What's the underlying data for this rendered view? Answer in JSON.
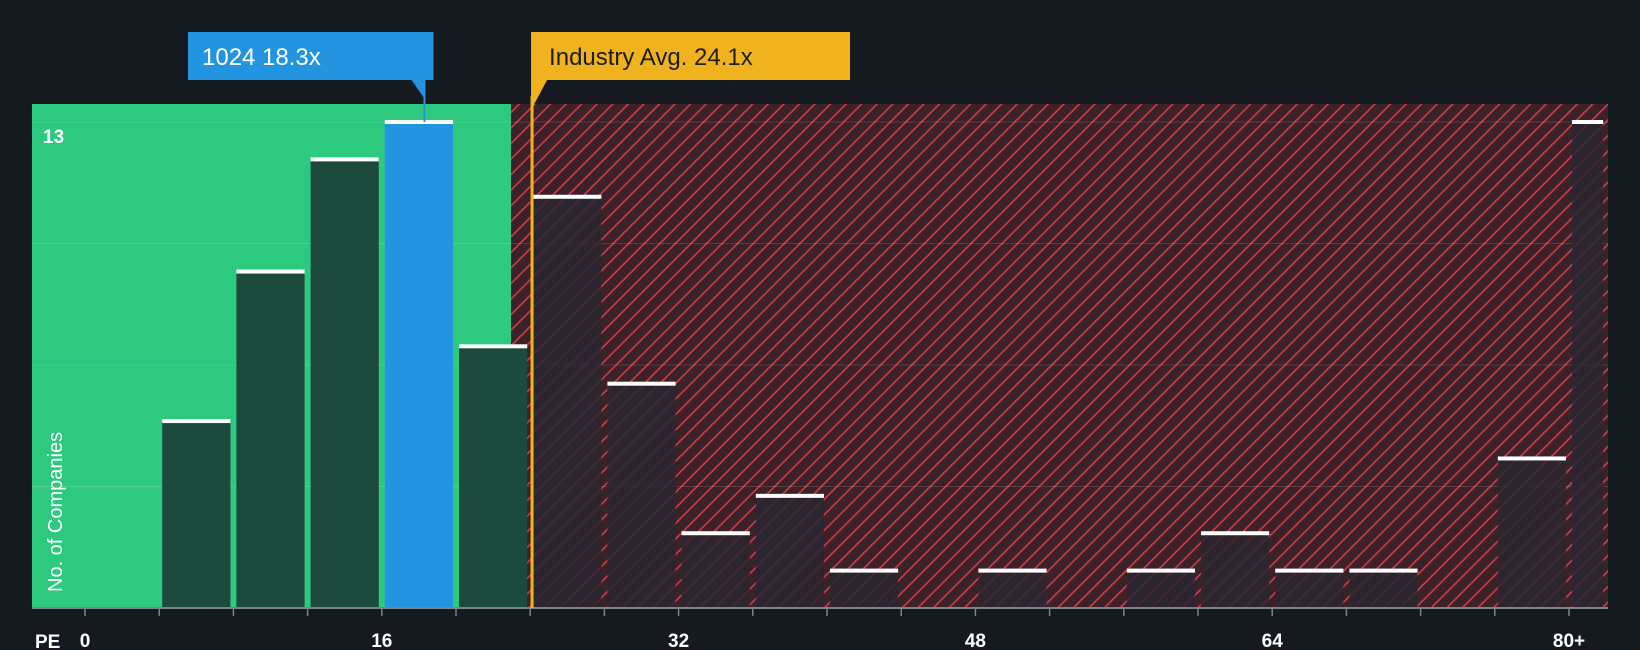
{
  "chart_data": {
    "type": "bar",
    "title": "",
    "xlabel": "PE",
    "ylabel": "No. of Companies",
    "x_tick_labels": [
      "0",
      "16",
      "32",
      "48",
      "64",
      "80+"
    ],
    "x_tick_values": [
      0,
      16,
      32,
      48,
      64,
      80
    ],
    "xlim": [
      -2.8,
      82
    ],
    "ylim": [
      0,
      13.5
    ],
    "y_max_label": "13",
    "bin_width": 4,
    "bins": [
      {
        "start": 0,
        "end": 4,
        "value": 0
      },
      {
        "start": 4,
        "end": 8,
        "value": 5
      },
      {
        "start": 8,
        "end": 12,
        "value": 9
      },
      {
        "start": 12,
        "end": 16,
        "value": 12
      },
      {
        "start": 16,
        "end": 20,
        "value": 13
      },
      {
        "start": 20,
        "end": 24,
        "value": 7
      },
      {
        "start": 24,
        "end": 28,
        "value": 11
      },
      {
        "start": 28,
        "end": 32,
        "value": 6
      },
      {
        "start": 32,
        "end": 36,
        "value": 2
      },
      {
        "start": 36,
        "end": 40,
        "value": 3
      },
      {
        "start": 40,
        "end": 44,
        "value": 1
      },
      {
        "start": 44,
        "end": 48,
        "value": 0
      },
      {
        "start": 48,
        "end": 52,
        "value": 1
      },
      {
        "start": 52,
        "end": 56,
        "value": 0
      },
      {
        "start": 56,
        "end": 60,
        "value": 1
      },
      {
        "start": 60,
        "end": 64,
        "value": 2
      },
      {
        "start": 64,
        "end": 68,
        "value": 1
      },
      {
        "start": 68,
        "end": 72,
        "value": 1
      },
      {
        "start": 72,
        "end": 76,
        "value": 0
      },
      {
        "start": 76,
        "end": 80,
        "value": 4
      },
      {
        "start": 80,
        "end": 82,
        "value": 13
      }
    ],
    "highlight_bin_start": 16,
    "company": {
      "label": "1024 18.3x",
      "ticker": "1024",
      "pe": 18.3
    },
    "industry": {
      "label": "Industry Avg. 24.1x",
      "pe": 24.1
    },
    "grid": true,
    "colors": {
      "background": "#151a21",
      "undervalued_zone": "#2dc97e",
      "overvalued_zone": "#3a2228",
      "hatch": "#d63a42",
      "bar_green_zone": "#1e4a3e",
      "bar_red_zone": "#2a2630",
      "highlight_bar": "#2394e0",
      "bar_cap": "#ffffff",
      "company_callout": "#2394e0",
      "industry_callout": "#f0b31d"
    }
  }
}
